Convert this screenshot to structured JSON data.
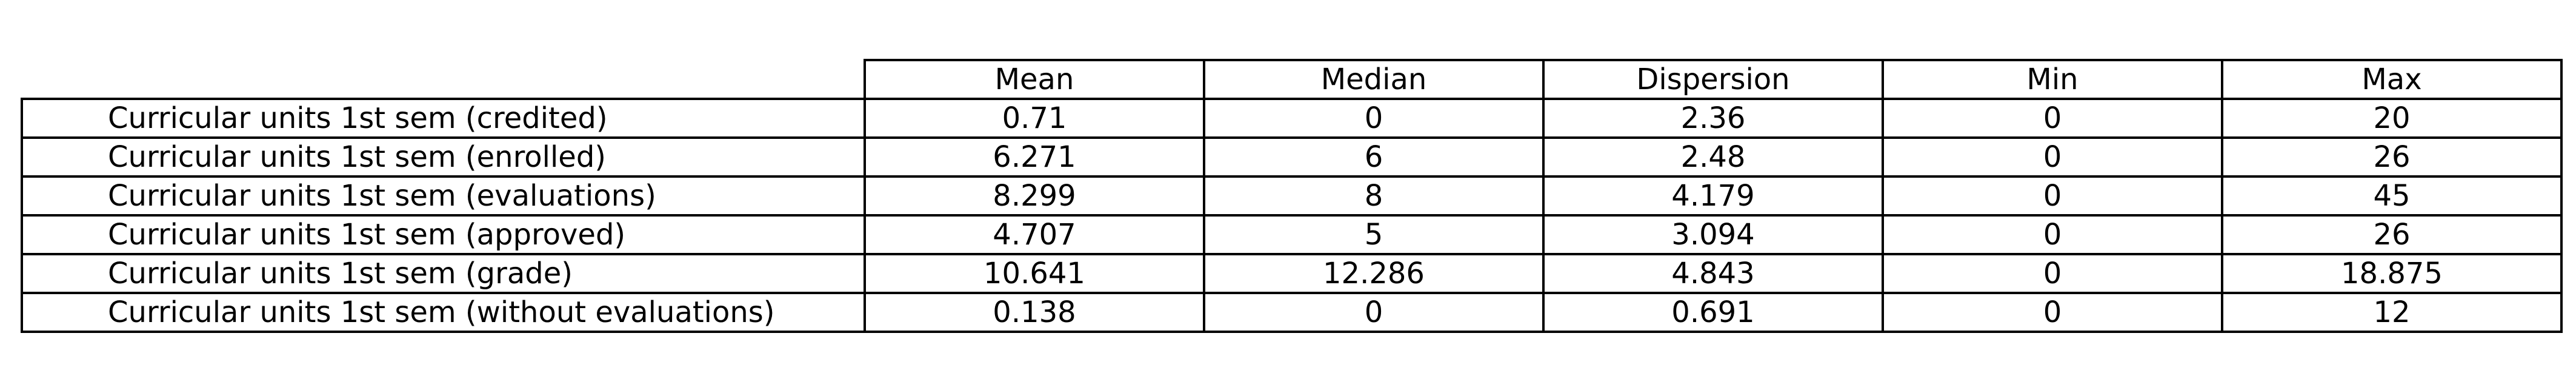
{
  "table": {
    "columns": [
      "Mean",
      "Median",
      "Dispersion",
      "Min",
      "Max"
    ],
    "rows": [
      {
        "label": "Curricular units 1st sem (credited)",
        "values": [
          "0.71",
          "0",
          "2.36",
          "0",
          "20"
        ]
      },
      {
        "label": "Curricular units 1st sem (enrolled)",
        "values": [
          "6.271",
          "6",
          "2.48",
          "0",
          "26"
        ]
      },
      {
        "label": "Curricular units 1st sem (evaluations)",
        "values": [
          "8.299",
          "8",
          "4.179",
          "0",
          "45"
        ]
      },
      {
        "label": "Curricular units 1st sem (approved)",
        "values": [
          "4.707",
          "5",
          "3.094",
          "0",
          "26"
        ]
      },
      {
        "label": "Curricular units 1st sem (grade)",
        "values": [
          "10.641",
          "12.286",
          "4.843",
          "0",
          "18.875"
        ]
      },
      {
        "label": "Curricular units 1st sem (without evaluations)",
        "values": [
          "0.138",
          "0",
          "0.691",
          "0",
          "12"
        ]
      }
    ]
  }
}
